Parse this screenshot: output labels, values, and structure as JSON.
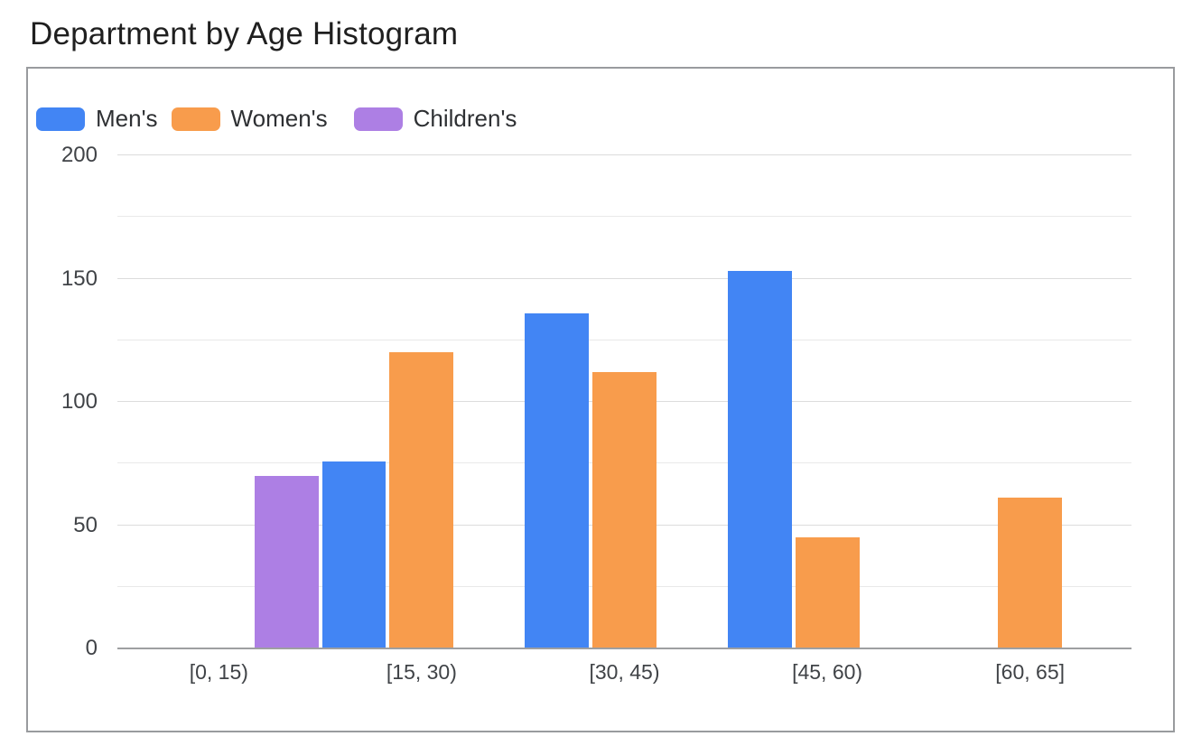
{
  "chart_data": {
    "type": "bar",
    "title": "Department by Age Histogram",
    "categories": [
      "[0, 15)",
      "[15, 30)",
      "[30, 45)",
      "[45, 60)",
      "[60, 65]"
    ],
    "series": [
      {
        "name": "Men's",
        "color": "#4285F4",
        "values": [
          0,
          76,
          136,
          153,
          0
        ]
      },
      {
        "name": "Women's",
        "color": "#F89C4C",
        "values": [
          0,
          120,
          112,
          45,
          61
        ]
      },
      {
        "name": "Children's",
        "color": "#AD7FE4",
        "values": [
          70,
          0,
          0,
          0,
          0
        ]
      }
    ],
    "xlabel": "",
    "ylabel": "",
    "ylim": [
      0,
      200
    ],
    "y_major_ticks": [
      0,
      50,
      100,
      150,
      200
    ],
    "y_minor_step": 25,
    "grid": true,
    "legend_position": "top-left"
  }
}
